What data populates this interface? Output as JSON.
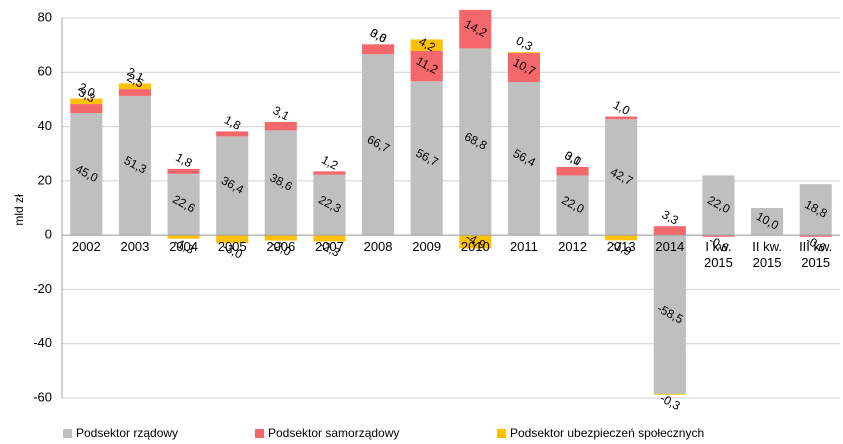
{
  "chart_data": {
    "type": "stacked_bar",
    "y_label": "mld zł",
    "categories": [
      "2002",
      "2003",
      "2004",
      "2005",
      "2006",
      "2007",
      "2008",
      "2009",
      "2010",
      "2011",
      "2012",
      "2013",
      "2014",
      "I kw. 2015",
      "II kw. 2015",
      "III kw. 2015"
    ],
    "series": [
      {
        "name": "Podsektor rządowy",
        "color": "#bfbfbf",
        "values": [
          45.0,
          51.3,
          22.6,
          36.4,
          38.6,
          22.3,
          66.7,
          56.7,
          68.8,
          56.4,
          22.0,
          42.7,
          -58.5,
          22.0,
          10.0,
          18.8
        ],
        "value_labels": [
          "45,0",
          "51,3",
          "22,6",
          "36,4",
          "38,6",
          "22,3",
          "66,7",
          "56,7",
          "68,8",
          "56,4",
          "22,0",
          "42,7",
          "-58,5",
          "22,0",
          "10,0",
          "18,8"
        ]
      },
      {
        "name": "Podsektor samorządowy",
        "color": "#f4676b",
        "values": [
          3.3,
          2.5,
          1.8,
          1.8,
          3.1,
          1.2,
          3.6,
          11.2,
          14.2,
          10.7,
          3.1,
          1.0,
          3.3,
          -0.6,
          null,
          -0.6
        ],
        "value_labels": [
          "3,3",
          "2,5",
          "1,8",
          "1,8",
          "3,1",
          "1,2",
          "3,6",
          "11,2",
          "14,2",
          "10,7",
          "3,1",
          "1,0",
          "3,3",
          "-0,6",
          null,
          "-0,6"
        ]
      },
      {
        "name": "Podsektor ubezpieczeń społecznych",
        "color": "#ffc000",
        "values": [
          2.0,
          2.1,
          -1.3,
          -3.0,
          -2.0,
          -2.3,
          0.0,
          4.2,
          -4.9,
          0.3,
          0.0,
          -1.9,
          -0.3,
          null,
          null,
          null
        ],
        "value_labels": [
          "2,0",
          "2,1",
          "-1,3",
          "-3,0",
          "-2,0",
          "-2,3",
          "0,0",
          "4,2",
          "-4,9",
          "0,3",
          "0,0",
          "-1,9",
          "-0,3",
          null,
          null,
          null
        ]
      }
    ],
    "ylim": [
      -60,
      80
    ],
    "yticks": [
      -60,
      -40,
      -20,
      0,
      20,
      40,
      60,
      80
    ],
    "grid": true,
    "legend": "bottom"
  }
}
